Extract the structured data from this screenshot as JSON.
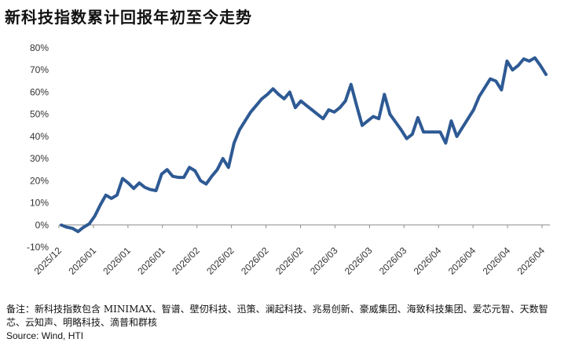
{
  "title": "新科技指数累计回报年初至今走势",
  "note": "备注：新科技指数包含 MINIMAX、智谱、壁仞科技、迅策、澜起科技、兆易创新、豪威集团、海致科技集团、爱芯元智、天数智芯、云知声、明略科技、滴普和群核",
  "source": "Source: Wind, HTI",
  "chart_data": {
    "type": "line",
    "title": "新科技指数累计回报年初至今走势",
    "xlabel": "",
    "ylabel": "",
    "ylim": [
      -10,
      80
    ],
    "grid": false,
    "y_ticks": [
      "-10%",
      "0%",
      "10%",
      "20%",
      "30%",
      "40%",
      "50%",
      "60%",
      "70%",
      "80%"
    ],
    "x_ticks": [
      "2025/12",
      "2026/01",
      "2026/01",
      "2026/01",
      "2026/02",
      "2026/02",
      "2026/02",
      "2026/02",
      "2026/03",
      "2026/03",
      "2026/03",
      "2026/04",
      "2026/04",
      "2026/04",
      "2026/04"
    ],
    "series": [
      {
        "color": "#2e5a94",
        "values": [
          0,
          -1,
          -1.5,
          -3,
          -1,
          0.5,
          4,
          9,
          13.5,
          12,
          13.5,
          21,
          19,
          16.5,
          19,
          17,
          16,
          15.5,
          23,
          25,
          22,
          21.5,
          21.5,
          26,
          24.5,
          20,
          18.5,
          22,
          25,
          30,
          26,
          37,
          43,
          47,
          51,
          54,
          57,
          59,
          61.5,
          59,
          57,
          60,
          53,
          56,
          54,
          52,
          50,
          48,
          52,
          51,
          53,
          56,
          63.5,
          54,
          45,
          47,
          49,
          48,
          59,
          50,
          46.5,
          43,
          39,
          41,
          48.5,
          42,
          42,
          42,
          42,
          37,
          47,
          40,
          44,
          48,
          52,
          58,
          62,
          66,
          65,
          61,
          74,
          70,
          72,
          75,
          74,
          75.5,
          72,
          68
        ]
      }
    ]
  }
}
